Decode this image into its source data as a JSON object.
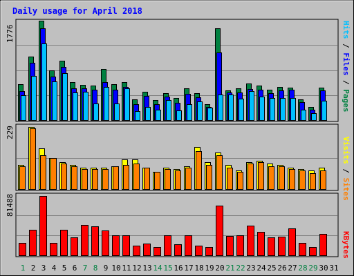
{
  "title": "Daily usage for April 2018",
  "colors": {
    "background": "#c0c0c0",
    "title_text": "#0000ff",
    "hits": "#008040",
    "files": "#0000ff",
    "pages": "#00c0ff",
    "visits": "#ffff00",
    "sites": "#ff8000",
    "kbytes": "#ff0000",
    "weekend_label": "#008040",
    "weekday_label": "#000000"
  },
  "days": [
    "1",
    "2",
    "3",
    "4",
    "5",
    "6",
    "7",
    "8",
    "9",
    "10",
    "11",
    "12",
    "13",
    "14",
    "15",
    "16",
    "17",
    "18",
    "19",
    "20",
    "21",
    "22",
    "23",
    "24",
    "25",
    "26",
    "27",
    "28",
    "29",
    "30",
    "31"
  ],
  "weekend_days": [
    "1",
    "7",
    "8",
    "14",
    "15",
    "21",
    "22",
    "28",
    "29"
  ],
  "chart_data": [
    {
      "type": "bar",
      "panel": "top",
      "ylabel_parts": [
        "Pages",
        "Files",
        "Hits"
      ],
      "ymax_label": "1776",
      "ylim": [
        0,
        1776
      ],
      "grid": true,
      "categories": [
        "1",
        "2",
        "3",
        "4",
        "5",
        "6",
        "7",
        "8",
        "9",
        "10",
        "11",
        "12",
        "13",
        "14",
        "15",
        "16",
        "17",
        "18",
        "19",
        "20",
        "21",
        "22",
        "23",
        "24",
        "25",
        "26",
        "27",
        "28",
        "29",
        "30",
        "31"
      ],
      "series": [
        {
          "name": "Hits",
          "color": "#008040",
          "values": [
            650,
            1140,
            1776,
            900,
            1070,
            680,
            640,
            620,
            920,
            650,
            680,
            380,
            520,
            370,
            490,
            410,
            570,
            490,
            300,
            1640,
            540,
            580,
            660,
            630,
            550,
            600,
            590,
            380,
            240,
            590,
            null
          ]
        },
        {
          "name": "Files",
          "color": "#0000ff",
          "values": [
            530,
            1030,
            1640,
            780,
            960,
            580,
            580,
            550,
            680,
            550,
            600,
            290,
            440,
            290,
            430,
            320,
            480,
            420,
            240,
            1210,
            500,
            500,
            560,
            550,
            490,
            540,
            550,
            330,
            200,
            540,
            null
          ]
        },
        {
          "name": "Pages",
          "color": "#00c0ff",
          "values": [
            450,
            800,
            1370,
            700,
            850,
            500,
            520,
            310,
            600,
            310,
            580,
            170,
            250,
            190,
            370,
            180,
            290,
            340,
            230,
            460,
            470,
            390,
            530,
            430,
            400,
            410,
            410,
            190,
            140,
            350,
            null
          ]
        }
      ]
    },
    {
      "type": "bar",
      "panel": "middle",
      "ylabel_parts": [
        "Sites",
        "Visits"
      ],
      "ymax_label": "229",
      "ylim": [
        0,
        229
      ],
      "grid": true,
      "categories": [
        "1",
        "2",
        "3",
        "4",
        "5",
        "6",
        "7",
        "8",
        "9",
        "10",
        "11",
        "12",
        "13",
        "14",
        "15",
        "16",
        "17",
        "18",
        "19",
        "20",
        "21",
        "22",
        "23",
        "24",
        "25",
        "26",
        "27",
        "28",
        "29",
        "30",
        "31"
      ],
      "series": [
        {
          "name": "Visits",
          "color": "#ffff00",
          "values": [
            90,
            229,
            150,
            115,
            100,
            90,
            80,
            80,
            80,
            85,
            110,
            110,
            80,
            65,
            80,
            75,
            85,
            155,
            100,
            135,
            90,
            70,
            100,
            105,
            95,
            90,
            80,
            75,
            70,
            80,
            null
          ]
        },
        {
          "name": "Sites",
          "color": "#ff8000",
          "values": [
            85,
            225,
            125,
            115,
            95,
            85,
            75,
            75,
            75,
            85,
            90,
            95,
            80,
            65,
            75,
            70,
            80,
            140,
            90,
            125,
            80,
            65,
            95,
            100,
            85,
            85,
            75,
            70,
            60,
            70,
            null
          ]
        }
      ]
    },
    {
      "type": "bar",
      "panel": "bottom",
      "ylabel_parts": [
        "KBytes"
      ],
      "ymax_label": "81488",
      "ylim": [
        0,
        81488
      ],
      "grid": true,
      "categories": [
        "1",
        "2",
        "3",
        "4",
        "5",
        "6",
        "7",
        "8",
        "9",
        "10",
        "11",
        "12",
        "13",
        "14",
        "15",
        "16",
        "17",
        "18",
        "19",
        "20",
        "21",
        "22",
        "23",
        "24",
        "25",
        "26",
        "27",
        "28",
        "29",
        "30",
        "31"
      ],
      "series": [
        {
          "name": "KBytes",
          "color": "#ff0000",
          "values": [
            18000,
            36000,
            81488,
            18000,
            36000,
            25000,
            42000,
            40000,
            35000,
            28000,
            28000,
            14000,
            17000,
            12000,
            28000,
            16000,
            28000,
            14000,
            12000,
            68000,
            27000,
            28000,
            41000,
            33000,
            25000,
            26000,
            37000,
            18000,
            12000,
            30000,
            null
          ]
        }
      ]
    }
  ]
}
